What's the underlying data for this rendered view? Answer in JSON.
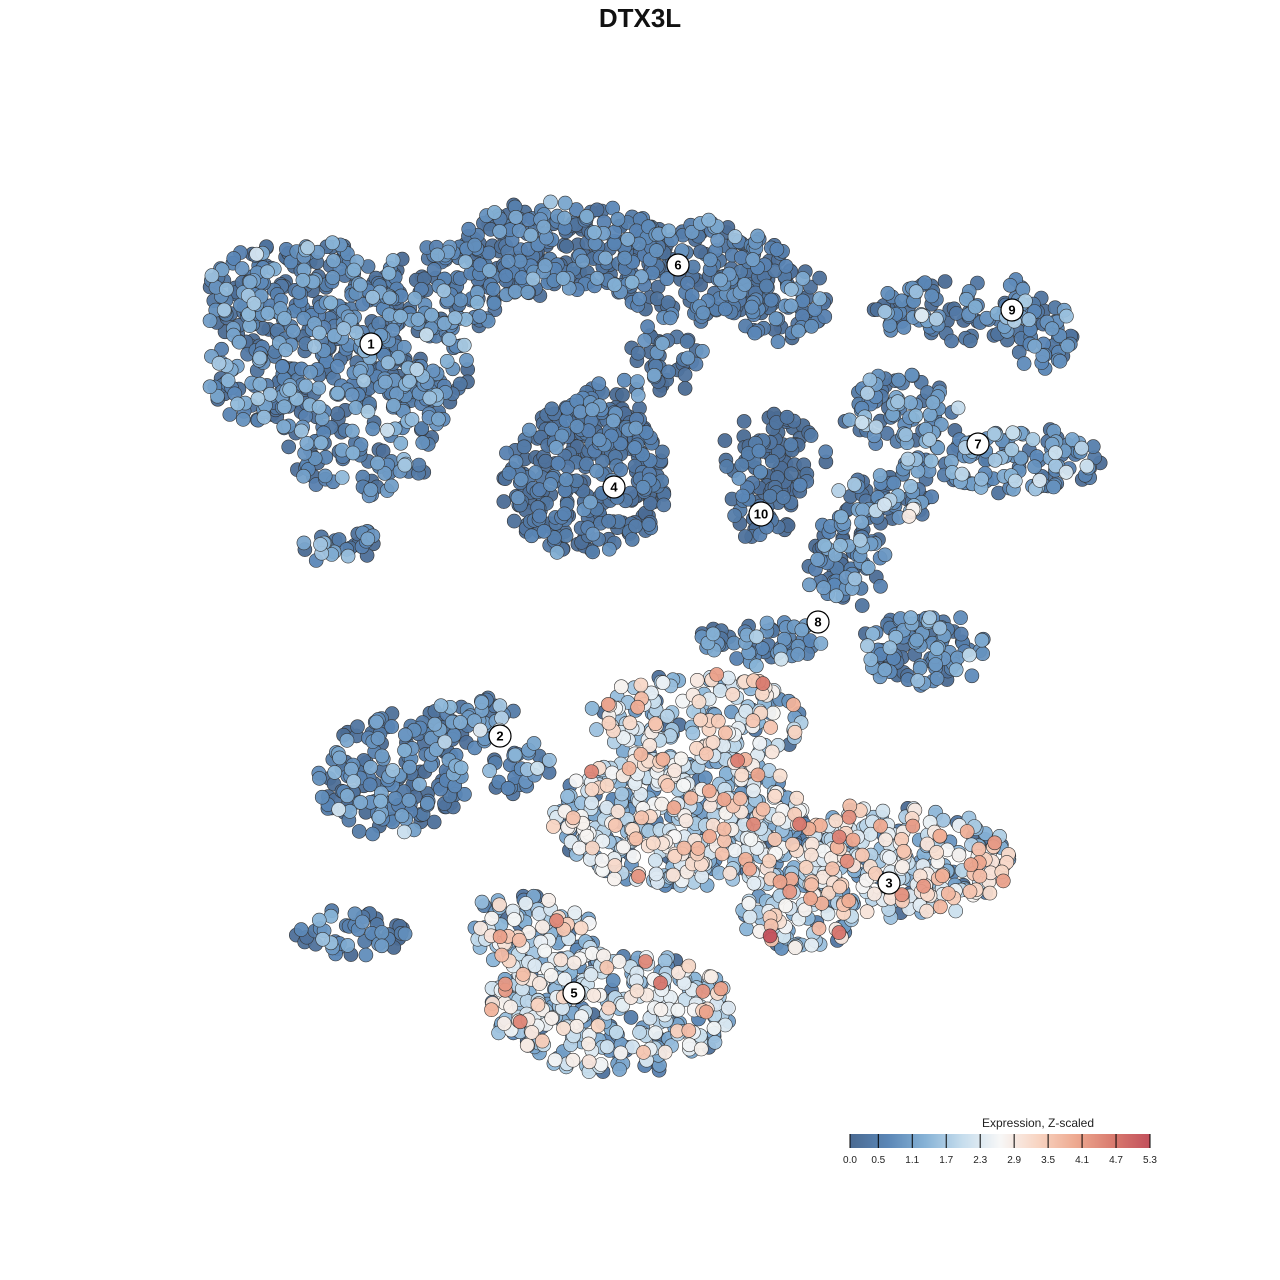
{
  "chart_data": {
    "type": "scatter",
    "title": "DTX3L",
    "xlabel": "",
    "ylabel": "",
    "grid": false,
    "legend_position": "bottom-right",
    "colorbar": {
      "title": "Expression, Z-scaled",
      "min": 0.0,
      "max": 5.3,
      "ticks": [
        "0.0",
        "0.5",
        "1.1",
        "1.7",
        "2.3",
        "2.9",
        "3.5",
        "4.1",
        "4.7",
        "5.3"
      ],
      "palette": [
        "#4a6a92",
        "#5a86b6",
        "#86b2d6",
        "#c6dded",
        "#f7f7f7",
        "#f8d5c3",
        "#eeaa91",
        "#d97b6f",
        "#c2505c"
      ]
    },
    "point_style": {
      "stroke": "#333333",
      "opacity": 0.95
    },
    "clusters": [
      {
        "id": "1",
        "label_pos": [
          371,
          344
        ],
        "expr_mean": 0.5,
        "expr_sd": 0.55,
        "blobs": [
          [
            300,
            300,
            95,
            60,
            260
          ],
          [
            360,
            420,
            85,
            75,
            210
          ],
          [
            250,
            380,
            45,
            45,
            70
          ],
          [
            440,
            290,
            70,
            45,
            120
          ],
          [
            420,
            360,
            55,
            45,
            80
          ],
          [
            340,
            540,
            40,
            18,
            30
          ]
        ]
      },
      {
        "id": "6",
        "label_pos": [
          678,
          265
        ],
        "expr_mean": 0.3,
        "expr_sd": 0.45,
        "blobs": [
          [
            560,
            250,
            110,
            45,
            250
          ],
          [
            700,
            270,
            90,
            50,
            180
          ],
          [
            780,
            300,
            50,
            40,
            70
          ],
          [
            660,
            360,
            40,
            35,
            40
          ]
        ]
      },
      {
        "id": "4",
        "label_pos": [
          614,
          487
        ],
        "expr_mean": 0.25,
        "expr_sd": 0.35,
        "blobs": [
          [
            585,
            480,
            80,
            80,
            330
          ],
          [
            600,
            410,
            50,
            30,
            40
          ]
        ]
      },
      {
        "id": "10",
        "label_pos": [
          761,
          514
        ],
        "expr_mean": 0.15,
        "expr_sd": 0.25,
        "blobs": [
          [
            775,
            455,
            55,
            40,
            80
          ],
          [
            765,
            510,
            30,
            30,
            40
          ]
        ]
      },
      {
        "id": "9",
        "label_pos": [
          1012,
          310
        ],
        "expr_mean": 0.55,
        "expr_sd": 0.55,
        "blobs": [
          [
            965,
            310,
            95,
            30,
            110
          ],
          [
            1045,
            335,
            30,
            35,
            40
          ]
        ]
      },
      {
        "id": "7",
        "label_pos": [
          978,
          444
        ],
        "expr_mean": 0.7,
        "expr_sd": 0.7,
        "blobs": [
          [
            900,
            410,
            55,
            35,
            80
          ],
          [
            1000,
            460,
            105,
            30,
            130
          ],
          [
            880,
            500,
            50,
            25,
            60
          ]
        ]
      },
      {
        "id": "8",
        "label_pos": [
          818,
          622
        ],
        "expr_mean": 0.5,
        "expr_sd": 0.6,
        "blobs": [
          [
            845,
            560,
            40,
            45,
            80
          ],
          [
            920,
            650,
            65,
            35,
            110
          ],
          [
            760,
            640,
            60,
            25,
            60
          ]
        ]
      },
      {
        "id": "2",
        "label_pos": [
          500,
          736
        ],
        "expr_mean": 0.55,
        "expr_sd": 0.6,
        "blobs": [
          [
            390,
            775,
            75,
            60,
            190
          ],
          [
            470,
            720,
            40,
            25,
            50
          ],
          [
            350,
            935,
            55,
            25,
            50
          ],
          [
            520,
            770,
            35,
            25,
            30
          ]
        ]
      },
      {
        "id": "3",
        "label_pos": [
          889,
          883
        ],
        "expr_mean": 2.0,
        "expr_sd": 1.05,
        "blobs": [
          [
            680,
            820,
            130,
            65,
            460
          ],
          [
            700,
            720,
            110,
            45,
            170
          ],
          [
            900,
            860,
            110,
            55,
            300
          ],
          [
            800,
            910,
            60,
            40,
            110
          ]
        ]
      },
      {
        "id": "5",
        "label_pos": [
          574,
          993
        ],
        "expr_mean": 1.8,
        "expr_sd": 1.0,
        "blobs": [
          [
            610,
            1010,
            125,
            60,
            340
          ],
          [
            530,
            935,
            60,
            45,
            110
          ]
        ]
      }
    ]
  }
}
